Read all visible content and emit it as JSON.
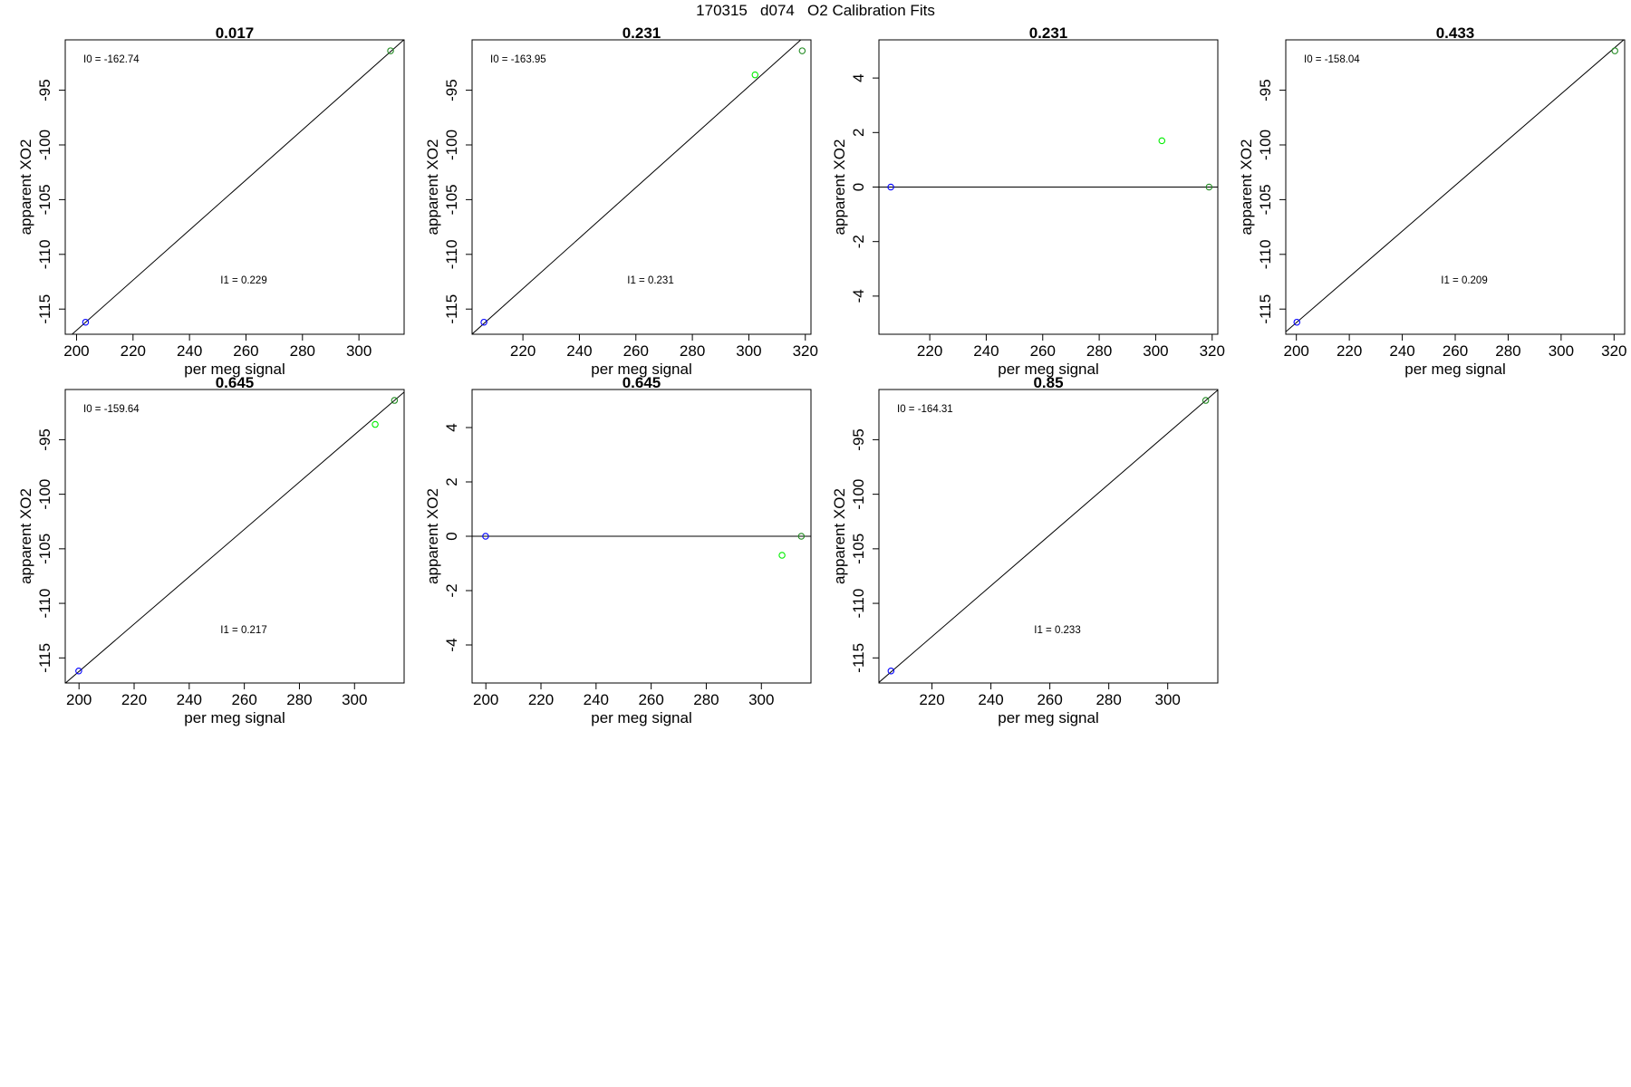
{
  "title": "170315   d074   O2 Calibration Fits",
  "colors": {
    "axis": "#000000",
    "fit_line": "#000000",
    "low_point": "#0000ff",
    "high_point": "#228b22",
    "mid_point": "#00ee00"
  },
  "chart_data": [
    {
      "type": "scatter",
      "title": "0.017",
      "xlabel": "per meg signal",
      "ylabel": "apparent XO2",
      "xlim": [
        196,
        316
      ],
      "ylim": [
        -117.3,
        -90.4
      ],
      "xticks": [
        200,
        220,
        240,
        260,
        280,
        300
      ],
      "yticks": [
        -95,
        -100,
        -105,
        -110,
        -115
      ],
      "points": [
        {
          "x": 203.2,
          "y": -116.2,
          "color": "#0000ff"
        },
        {
          "x": 311.2,
          "y": -91.4,
          "color": "#228b22"
        }
      ],
      "fit_line": {
        "type": "linear",
        "slope": 0.229,
        "intercept": -162.74
      },
      "annotations": [
        "I0 =  -162.74",
        "I1 =  0.229"
      ]
    },
    {
      "type": "scatter",
      "title": "0.231",
      "xlabel": "per meg signal",
      "ylabel": "apparent XO2",
      "xlim": [
        202,
        322
      ],
      "ylim": [
        -117.3,
        -90.4
      ],
      "xticks": [
        220,
        240,
        260,
        280,
        300,
        320
      ],
      "yticks": [
        -95,
        -100,
        -105,
        -110,
        -115
      ],
      "points": [
        {
          "x": 206.2,
          "y": -116.2,
          "color": "#0000ff"
        },
        {
          "x": 302.2,
          "y": -93.6,
          "color": "#00ee00"
        },
        {
          "x": 318.9,
          "y": -91.4,
          "color": "#228b22"
        }
      ],
      "fit_line": {
        "type": "linear",
        "slope": 0.231,
        "intercept": -163.95
      },
      "annotations": [
        "I0 =  -163.95",
        "I1 =  0.231"
      ]
    },
    {
      "type": "scatter",
      "title": "0.231",
      "xlabel": "per meg signal",
      "ylabel": "apparent XO2",
      "xlim": [
        202,
        322
      ],
      "ylim": [
        -5.4,
        5.4
      ],
      "xticks": [
        220,
        240,
        260,
        280,
        300,
        320
      ],
      "yticks": [
        4,
        2,
        0,
        -2,
        -4
      ],
      "points": [
        {
          "x": 206.2,
          "y": 0,
          "color": "#0000ff"
        },
        {
          "x": 302.2,
          "y": 1.7,
          "color": "#00ee00"
        },
        {
          "x": 318.9,
          "y": 0,
          "color": "#228b22"
        }
      ],
      "fit_line": {
        "type": "horizontal",
        "y": 0
      },
      "annotations": []
    },
    {
      "type": "scatter",
      "title": "0.433",
      "xlabel": "per meg signal",
      "ylabel": "apparent XO2",
      "xlim": [
        196,
        324
      ],
      "ylim": [
        -117.3,
        -90.4
      ],
      "xticks": [
        200,
        220,
        240,
        260,
        280,
        300,
        320
      ],
      "yticks": [
        -95,
        -100,
        -105,
        -110,
        -115
      ],
      "points": [
        {
          "x": 200.2,
          "y": -116.2,
          "color": "#0000ff"
        },
        {
          "x": 320.3,
          "y": -91.4,
          "color": "#228b22"
        }
      ],
      "fit_line": {
        "type": "linear",
        "slope": 0.209,
        "intercept": -158.04
      },
      "annotations": [
        "I0 =  -158.04",
        "I1 =  0.209"
      ]
    },
    {
      "type": "scatter",
      "title": "0.645",
      "xlabel": "per meg signal",
      "ylabel": "apparent XO2",
      "xlim": [
        195,
        318
      ],
      "ylim": [
        -117.3,
        -90.4
      ],
      "xticks": [
        200,
        220,
        240,
        260,
        280,
        300
      ],
      "yticks": [
        -95,
        -100,
        -105,
        -110,
        -115
      ],
      "points": [
        {
          "x": 199.9,
          "y": -116.2,
          "color": "#0000ff"
        },
        {
          "x": 307.5,
          "y": -93.6,
          "color": "#00ee00"
        },
        {
          "x": 314.5,
          "y": -91.4,
          "color": "#228b22"
        }
      ],
      "fit_line": {
        "type": "linear",
        "slope": 0.217,
        "intercept": -159.64
      },
      "annotations": [
        "I0 =  -159.64",
        "I1 =  0.217"
      ]
    },
    {
      "type": "scatter",
      "title": "0.645",
      "xlabel": "per meg signal",
      "ylabel": "apparent XO2",
      "xlim": [
        195,
        318
      ],
      "ylim": [
        -5.4,
        5.4
      ],
      "xticks": [
        200,
        220,
        240,
        260,
        280,
        300
      ],
      "yticks": [
        4,
        2,
        0,
        -2,
        -4
      ],
      "points": [
        {
          "x": 199.9,
          "y": 0,
          "color": "#0000ff"
        },
        {
          "x": 307.5,
          "y": -0.7,
          "color": "#00ee00"
        },
        {
          "x": 314.5,
          "y": 0,
          "color": "#228b22"
        }
      ],
      "fit_line": {
        "type": "horizontal",
        "y": 0
      },
      "annotations": []
    },
    {
      "type": "scatter",
      "title": "0.85",
      "xlabel": "per meg signal",
      "ylabel": "apparent XO2",
      "xlim": [
        202,
        317
      ],
      "ylim": [
        -117.3,
        -90.4
      ],
      "xticks": [
        220,
        240,
        260,
        280,
        300
      ],
      "yticks": [
        -95,
        -100,
        -105,
        -110,
        -115
      ],
      "points": [
        {
          "x": 206.1,
          "y": -116.2,
          "color": "#0000ff"
        },
        {
          "x": 312.9,
          "y": -91.4,
          "color": "#228b22"
        }
      ],
      "fit_line": {
        "type": "linear",
        "slope": 0.233,
        "intercept": -164.31
      },
      "annotations": [
        "I0 =  -164.31",
        "I1 =  0.233"
      ]
    }
  ]
}
